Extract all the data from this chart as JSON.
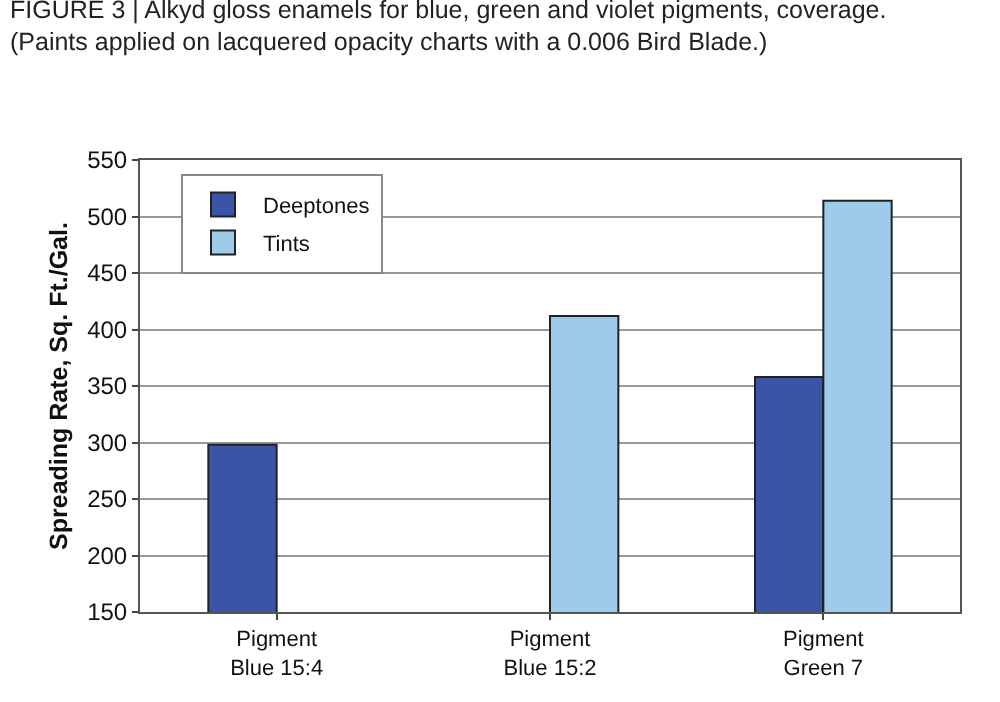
{
  "chart_data": {
    "type": "bar",
    "title": "FIGURE 3 | Alkyd gloss enamels for blue, green and violet pigments, coverage.",
    "subtitle": "(Paints applied on lacquered opacity charts with a 0.006 Bird Blade.)",
    "ylabel": "Spreading Rate, Sq. Ft./Gal.",
    "categories": [
      "Pigment\nBlue 15:4",
      "Pigment\nBlue 15:2",
      "Pigment\nGreen 7"
    ],
    "series": [
      {
        "name": "Deeptones",
        "color": "#3a54a6",
        "values": [
          298,
          null,
          358
        ]
      },
      {
        "name": "Tints",
        "color": "#9fcbeb",
        "values": [
          null,
          412,
          514
        ]
      }
    ],
    "ylim": [
      150,
      550
    ],
    "yticks": [
      150,
      200,
      250,
      300,
      350,
      400,
      450,
      500,
      550
    ],
    "grid": "y",
    "legend": "top left"
  }
}
